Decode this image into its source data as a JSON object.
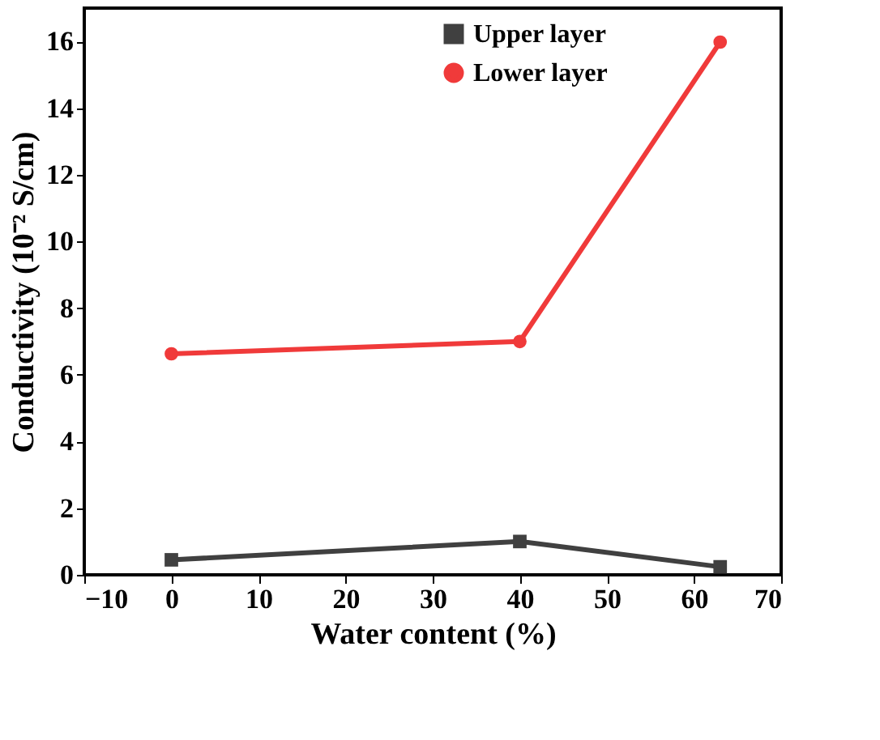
{
  "chart_data": {
    "type": "line",
    "xlabel": "Water content (%)",
    "ylabel": "Conductivity (10⁻² S/cm)",
    "x": [
      0,
      40,
      63
    ],
    "series": [
      {
        "name": "Upper layer",
        "color": "#404040",
        "marker": "square",
        "values": [
          0.45,
          1.0,
          0.24
        ]
      },
      {
        "name": "Lower layer",
        "color": "#f03a3a",
        "marker": "circle",
        "values": [
          6.63,
          7.0,
          15.98
        ]
      }
    ],
    "xlim": [
      -10,
      70
    ],
    "xticks": [
      -10,
      0,
      10,
      20,
      30,
      40,
      50,
      60,
      70
    ],
    "ylim": [
      0,
      17
    ],
    "yticks": [
      0,
      2,
      4,
      6,
      8,
      10,
      12,
      14,
      16
    ],
    "grid": false,
    "legend": "top right",
    "line_style": "solid"
  }
}
